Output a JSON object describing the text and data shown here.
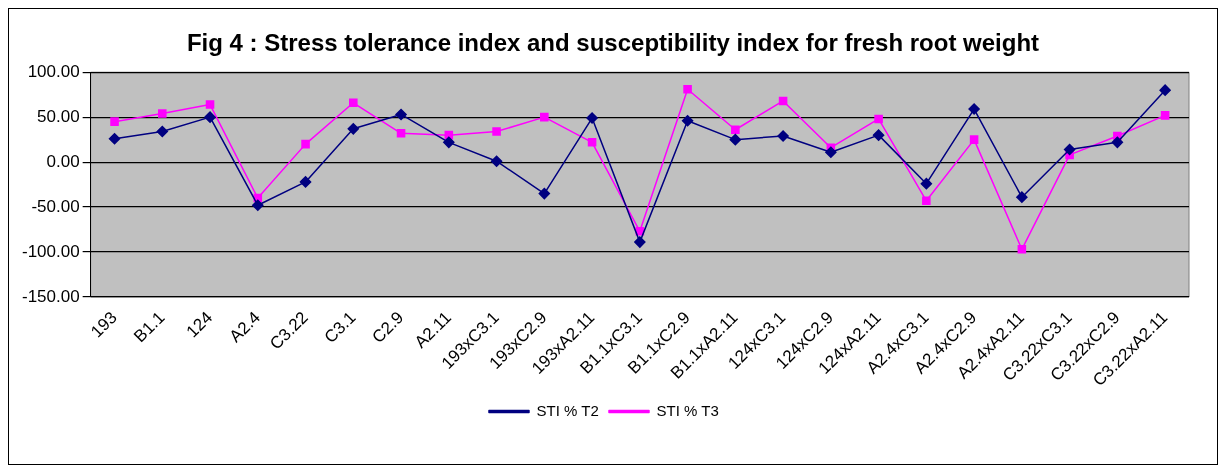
{
  "chart_data": {
    "type": "line",
    "title": "Fig 4 : Stress tolerance index and susceptibility index for fresh root weight",
    "categories": [
      "193",
      "B1.1",
      "124",
      "A2.4",
      "C3.22",
      "C3.1",
      "C2.9",
      "A2.11",
      "193xC3.1",
      "193xC2.9",
      "193xA2.11",
      "B1.1xC3.1",
      "B1.1xC2.9",
      "B1.1xA2.11",
      "124xC3.1",
      "124xC2.9",
      "124xA2.11",
      "A2.4xC3.1",
      "A2.4xC2.9",
      "A2.4xA2.11",
      "C3.22xC3.1",
      "C3.22xC2.9",
      "C3.22xA2.11"
    ],
    "series": [
      {
        "name": "STI % T2",
        "color": "#000080",
        "marker": "diamond",
        "values": [
          26,
          34,
          50,
          -48,
          -22,
          37,
          53,
          22,
          1,
          -35,
          49,
          -89,
          46,
          25,
          29,
          11,
          30,
          -24,
          59,
          -39,
          14,
          22,
          80
        ]
      },
      {
        "name": "STI % T3",
        "color": "#ff00ff",
        "marker": "square",
        "values": [
          45,
          54,
          64,
          -40,
          20,
          66,
          32,
          30,
          34,
          50,
          22,
          -77,
          81,
          36,
          68,
          16,
          48,
          -43,
          25,
          -97,
          8,
          29,
          52
        ]
      }
    ],
    "ylim": [
      -150,
      100
    ],
    "yticks": [
      {
        "value": -150,
        "label": "-150.00"
      },
      {
        "value": -100,
        "label": "-100.00"
      },
      {
        "value": -50,
        "label": "-50.00"
      },
      {
        "value": 0,
        "label": "0.00"
      },
      {
        "value": 50,
        "label": "50.00"
      },
      {
        "value": 100,
        "label": "100.00"
      }
    ],
    "grid": "y",
    "legend": "bottom"
  }
}
